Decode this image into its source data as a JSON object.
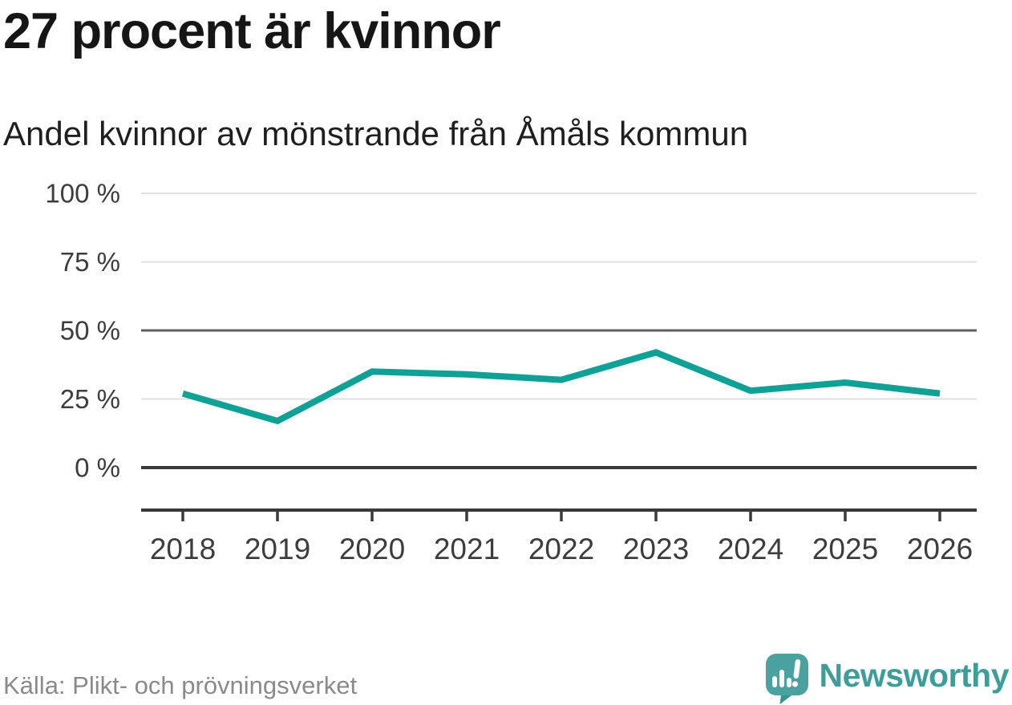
{
  "header": {
    "title": "27 procent är kvinnor",
    "subtitle": "Andel kvinnor av mönstrande från Åmåls kommun"
  },
  "footer": {
    "source": "Källa: Plikt- och prövningsverket",
    "brand_name": "Newsworthy",
    "brand_icon": "speech-bubble-bar-chart-exclamation"
  },
  "colors": {
    "line": "#0fa096",
    "grid_light": "#e1e1e1",
    "grid_strong": "#5f5f5f",
    "axis_dark": "#3a3a3a",
    "tick_text": "#3d3d3d",
    "brand_teal": "#3f9d99",
    "brand_icon_fill": "#4aa2a0",
    "source_text": "#8a8a8a"
  },
  "chart_data": {
    "type": "line",
    "title": "27 procent är kvinnor",
    "subtitle": "Andel kvinnor av mönstrande från Åmåls kommun",
    "categories": [
      "2018",
      "2019",
      "2020",
      "2021",
      "2022",
      "2023",
      "2024",
      "2025",
      "2026"
    ],
    "series": [
      {
        "name": "Andel kvinnor av mönstrande",
        "values": [
          27,
          17,
          35,
          34,
          32,
          42,
          28,
          31,
          27
        ]
      }
    ],
    "unit": "%",
    "ylim": [
      0,
      100
    ],
    "xlabel": "",
    "ylabel": "",
    "grid": "horizontal",
    "legend": "none",
    "y_ticks": [
      {
        "value": 0,
        "label": "0 %",
        "style": "axis"
      },
      {
        "value": 25,
        "label": "25 %",
        "style": "light"
      },
      {
        "value": 50,
        "label": "50 %",
        "style": "strong"
      },
      {
        "value": 75,
        "label": "75 %",
        "style": "light"
      },
      {
        "value": 100,
        "label": "100 %",
        "style": "light"
      }
    ],
    "source": "Källa: Plikt- och prövningsverket"
  }
}
